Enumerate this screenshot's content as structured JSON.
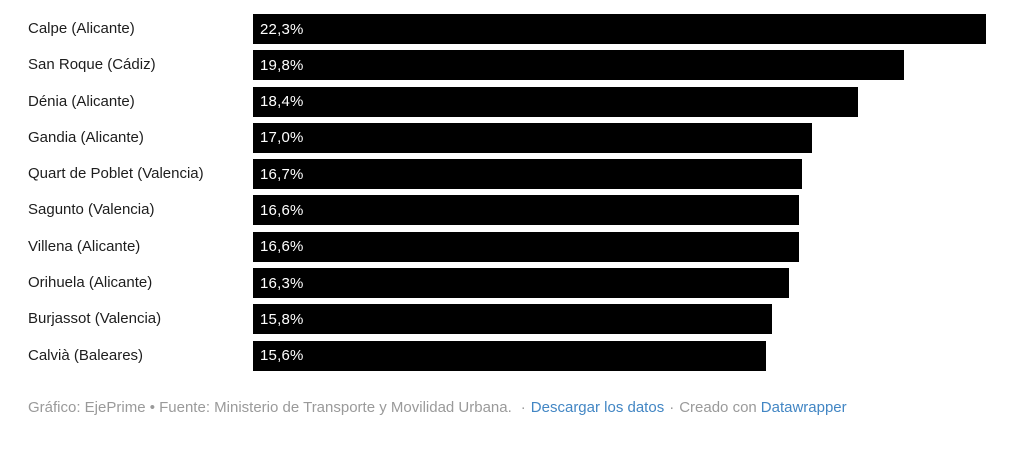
{
  "chart_data": {
    "type": "bar",
    "orientation": "horizontal",
    "title": "",
    "xlabel": "",
    "ylabel": "",
    "xlim": [
      0,
      22.3
    ],
    "grid": false,
    "legend": false,
    "bar_color": "#000000",
    "value_label_color": "#ffffff",
    "label_color": "#1d1d1d",
    "categories": [
      "Calpe (Alicante)",
      "San Roque (Cádiz)",
      "Dénia (Alicante)",
      "Gandia (Alicante)",
      "Quart de Poblet (Valencia)",
      "Sagunto (Valencia)",
      "Villena (Alicante)",
      "Orihuela (Alicante)",
      "Burjassot (Valencia)",
      "Calvià (Baleares)"
    ],
    "values": [
      22.3,
      19.8,
      18.4,
      17.0,
      16.7,
      16.6,
      16.6,
      16.3,
      15.8,
      15.6
    ],
    "value_labels": [
      "22,3%",
      "19,8%",
      "18,4%",
      "17,0%",
      "16,7%",
      "16,6%",
      "16,6%",
      "16,3%",
      "15,8%",
      "15,6%"
    ]
  },
  "footer": {
    "credit": "Gráfico: EjePrime • Fuente: Ministerio de Transporte y Movilidad Urbana.",
    "separator": "·",
    "download_label": "Descargar los datos",
    "created_with": "Creado con",
    "datawrapper_label": "Datawrapper",
    "text_color": "#9a9a9a",
    "link_color": "#4286c4"
  }
}
